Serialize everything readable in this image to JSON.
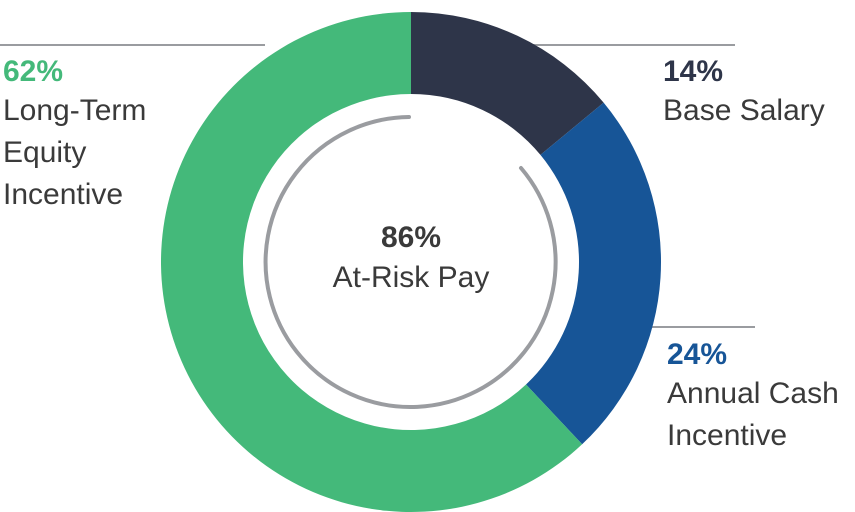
{
  "chart_data": {
    "type": "donut",
    "categories": [
      "Base Salary",
      "Annual Cash Incentive",
      "Long-Term Equity Incentive"
    ],
    "values": [
      14,
      24,
      62
    ],
    "value_labels": [
      "14%",
      "24%",
      "62%"
    ],
    "colors": [
      "#2e3549",
      "#175597",
      "#44b97a"
    ],
    "center_title": "86%",
    "center_subtitle": "At-Risk Pay"
  }
}
